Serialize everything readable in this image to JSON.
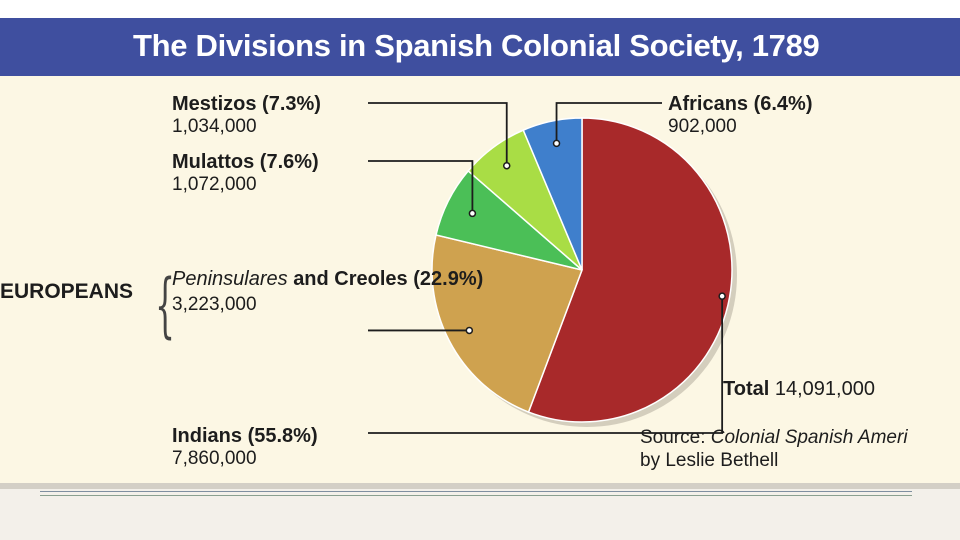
{
  "title": "The Divisions in Spanish Colonial Society, 1789",
  "group_label": "EUROPEANS",
  "total_label": "Total",
  "total_value": "14,091,000",
  "source_prefix": "Source:",
  "source_title": "Colonial Spanish Ameri",
  "source_author": "by Leslie Bethell",
  "colors": {
    "title_bar": "#3f4f9f",
    "panel": "#fcf7e4"
  },
  "chart_data": {
    "type": "pie",
    "title": "The Divisions in Spanish Colonial Society, 1789",
    "total": 14091000,
    "slices": [
      {
        "name": "Indians",
        "pct_label": "(55.8%)",
        "percent": 55.8,
        "count": 7860000,
        "count_label": "7,860,000",
        "color": "#a8292a"
      },
      {
        "name_prefix": "Peninsulares",
        "name": "and Creoles",
        "pct_label": "(22.9%)",
        "percent": 22.9,
        "count": 3223000,
        "count_label": "3,223,000",
        "color": "#cfa24f"
      },
      {
        "name": "Mulattos",
        "pct_label": "(7.6%)",
        "percent": 7.6,
        "count": 1072000,
        "count_label": "1,072,000",
        "color": "#4bbf57"
      },
      {
        "name": "Mestizos",
        "pct_label": "(7.3%)",
        "percent": 7.3,
        "count": 1034000,
        "count_label": "1,034,000",
        "color": "#a9dd45"
      },
      {
        "name": "Africans",
        "pct_label": "(6.4%)",
        "percent": 6.4,
        "count": 902000,
        "count_label": "902,000",
        "color": "#3f7fcc"
      }
    ]
  }
}
